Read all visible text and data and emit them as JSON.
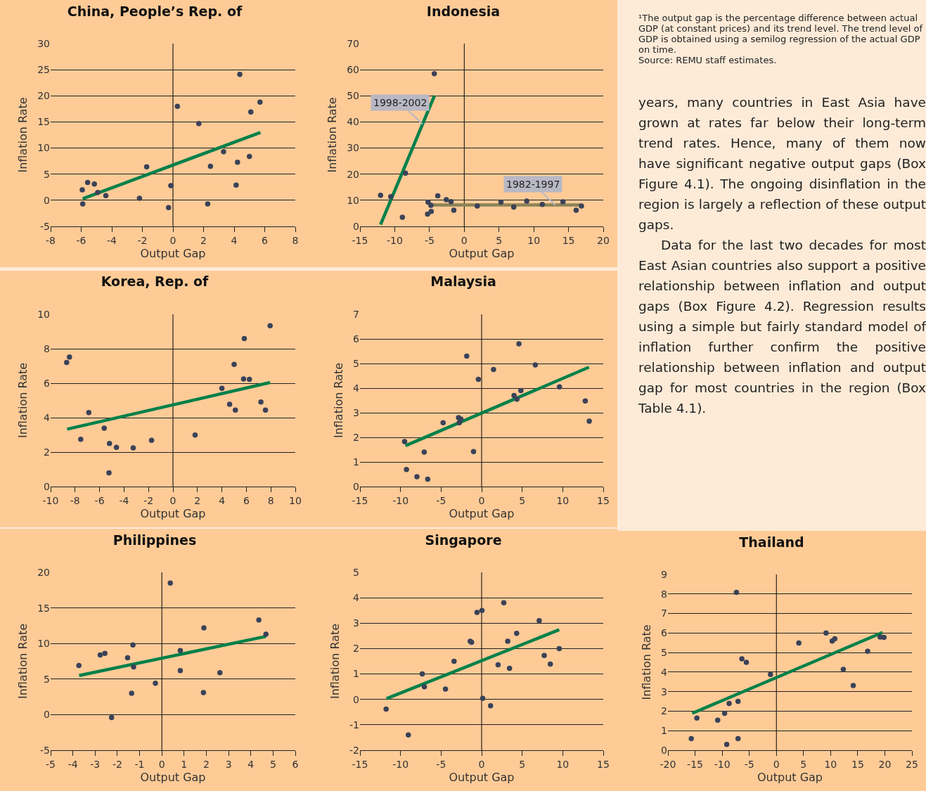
{
  "chart_data": [
    {
      "type": "scatter",
      "title": "China, People’s Rep. of",
      "xlabel": "Output Gap",
      "ylabel": "Inflation Rate",
      "xlim": [
        -8,
        8
      ],
      "xticks": [
        -8,
        -6,
        -4,
        -2,
        0,
        2,
        4,
        6,
        8
      ],
      "ylim": [
        -5,
        30
      ],
      "yticks": [
        -5,
        0,
        5,
        10,
        15,
        20,
        25,
        30
      ],
      "grid": "y",
      "marker": "circle",
      "ref_lines": [
        {
          "axis": "x",
          "value": 0,
          "color": "#000000"
        }
      ],
      "series": [
        {
          "type": "scatter",
          "color": "#3a4258",
          "x": [
            -5.93,
            -5.58,
            -5.14,
            -4.92,
            -4.39,
            -5.9,
            -2.19,
            -1.72,
            -0.29,
            -0.14,
            0.29,
            1.69,
            2.27,
            2.45,
            3.31,
            4.13,
            4.22,
            4.37,
            5.0,
            5.09,
            5.69
          ],
          "values": [
            2.0,
            3.4,
            3.1,
            1.5,
            0.9,
            -0.7,
            0.4,
            6.4,
            -1.4,
            2.8,
            18.0,
            14.7,
            -0.7,
            6.5,
            9.3,
            2.9,
            7.3,
            24.1,
            8.4,
            16.9,
            18.8
          ]
        },
        {
          "type": "line",
          "marker": "none",
          "color": "#00804a",
          "x": [
            -5.9,
            5.72
          ],
          "values": [
            0.3,
            13.0
          ]
        }
      ]
    },
    {
      "type": "scatter",
      "title": "Indonesia",
      "xlabel": "Output Gap",
      "ylabel": "Inflation Rate",
      "xlim": [
        -15,
        20
      ],
      "xticks": [
        -15,
        -10,
        -5,
        0,
        5,
        10,
        15,
        20
      ],
      "ylim": [
        0,
        70
      ],
      "yticks": [
        0,
        10,
        20,
        30,
        40,
        50,
        60,
        70
      ],
      "grid": "y",
      "marker": "circle",
      "ref_lines": [
        {
          "axis": "x",
          "value": 0,
          "color": "#000000"
        }
      ],
      "annotations": [
        {
          "text": "1998-2002",
          "x": -6,
          "y": 39.2
        },
        {
          "text": "1982-1997",
          "x": 13.1,
          "y": 8.2
        }
      ],
      "series": [
        {
          "type": "scatter",
          "color": "#3a4258",
          "x": [
            -12.04,
            -10.57,
            -8.9,
            -8.46,
            -4.31,
            -5.2,
            -5.28,
            -4.8,
            -4.75,
            -3.81,
            -2.58,
            -1.9,
            -1.5,
            1.87,
            5.28,
            7.12,
            8.99,
            11.23,
            14.2,
            16.1,
            16.86
          ],
          "values": [
            11.9,
            11.4,
            3.5,
            20.4,
            58.5,
            9.3,
            4.7,
            8.1,
            5.7,
            11.7,
            10.2,
            9.5,
            6.2,
            7.8,
            9.3,
            7.4,
            9.7,
            8.4,
            9.4,
            6.2,
            7.8
          ]
        },
        {
          "type": "line",
          "marker": "none",
          "color": "#00804a",
          "x": [
            -12.04,
            -4.28
          ],
          "values": [
            0.7,
            50.1
          ]
        },
        {
          "type": "line",
          "marker": "none",
          "color": "#8b8355",
          "x": [
            -4.85,
            16.8
          ],
          "values": [
            8.2,
            8.2
          ]
        }
      ]
    },
    {
      "type": "other",
      "annotations": [
        "¹The output gap is the percentage difference between actual GDP (at constant prices) and its trend level. The trend level of GDP is obtained using a semilog regression of the actual GDP on time.",
        "Source: REMU staff estimates.",
        "years, many countries in East Asia have grown at rates far below their long-term trend rates. Hence, many of them now have significant negative output gaps (Box Figure 4.1). The ongoing disinflation in the region is largely a reflection of these output gaps.",
        "Data for the last two decades for most East Asian countries also support a positive relationship between inflation and output gaps (Box Figure 4.2). Regression results using a simple but fairly standard model of inflation further confirm the positive relationship between inflation and output gap for most countries in the region (Box Table 4.1)."
      ]
    },
    {
      "type": "scatter",
      "title": "Korea, Rep. of",
      "xlabel": "Output Gap",
      "ylabel": "Inflation Rate",
      "xlim": [
        -10,
        10
      ],
      "xticks": [
        -10,
        -8,
        -6,
        -4,
        -2,
        0,
        2,
        4,
        6,
        8,
        10
      ],
      "ylim": [
        0,
        10
      ],
      "yticks": [
        0,
        2,
        4,
        6,
        8,
        10
      ],
      "grid": "y",
      "marker": "circle",
      "ref_lines": [
        {
          "axis": "x",
          "value": 0,
          "color": "#000000"
        }
      ],
      "series": [
        {
          "type": "scatter",
          "color": "#3a4258",
          "x": [
            -8.69,
            -8.46,
            -6.88,
            -7.54,
            -5.62,
            -5.19,
            -4.62,
            -5.23,
            -3.25,
            -1.75,
            1.81,
            4.0,
            4.63,
            5.1,
            5.0,
            5.83,
            5.77,
            6.25,
            7.19,
            7.56,
            7.94
          ],
          "values": [
            7.2,
            7.52,
            4.3,
            2.75,
            3.39,
            2.5,
            2.28,
            0.8,
            2.24,
            2.68,
            2.99,
            5.7,
            4.78,
            4.44,
            7.09,
            8.59,
            6.25,
            6.22,
            4.91,
            4.44,
            9.34
          ]
        },
        {
          "type": "line",
          "marker": "none",
          "color": "#00804a",
          "x": [
            -8.65,
            7.94
          ],
          "values": [
            3.33,
            6.04
          ]
        }
      ]
    },
    {
      "type": "scatter",
      "title": "Malaysia",
      "xlabel": "Output Gap",
      "ylabel": "Inflation Rate",
      "xlim": [
        -15,
        15
      ],
      "xticks": [
        -15,
        -10,
        -5,
        0,
        5,
        10,
        15
      ],
      "ylim": [
        0,
        7
      ],
      "yticks": [
        0,
        1,
        2,
        3,
        4,
        5,
        6,
        7
      ],
      "grid": "y",
      "marker": "circle",
      "ref_lines": [
        {
          "axis": "x",
          "value": 0,
          "color": "#000000"
        }
      ],
      "series": [
        {
          "type": "scatter",
          "color": "#3a4258",
          "x": [
            -9.5,
            -9.27,
            -7.98,
            -7.08,
            -6.65,
            -4.75,
            -2.85,
            -2.76,
            -2.56,
            -1.84,
            -1.0,
            -0.4,
            1.47,
            4.0,
            4.35,
            4.6,
            4.84,
            6.62,
            9.6,
            12.78,
            13.27
          ],
          "values": [
            1.83,
            0.69,
            0.4,
            1.4,
            0.3,
            2.59,
            2.8,
            2.59,
            2.74,
            5.3,
            1.42,
            4.36,
            4.76,
            3.7,
            3.55,
            5.8,
            3.9,
            4.94,
            4.05,
            3.48,
            2.66
          ]
        },
        {
          "type": "line",
          "marker": "none",
          "color": "#00804a",
          "x": [
            -9.39,
            13.24
          ],
          "values": [
            1.66,
            4.85
          ]
        }
      ]
    },
    {
      "type": "scatter",
      "title": "Philippines",
      "xlabel": "Output Gap",
      "ylabel": "Inflation Rate",
      "xlim": [
        -5,
        6
      ],
      "xticks": [
        -5,
        -4,
        -3,
        -2,
        -1,
        0,
        1,
        2,
        3,
        4,
        5,
        6
      ],
      "ylim": [
        -5,
        20
      ],
      "yticks": [
        -5,
        0,
        5,
        10,
        15,
        20
      ],
      "grid": "y",
      "marker": "circle",
      "ref_lines": [
        {
          "axis": "x",
          "value": 0,
          "color": "#000000"
        }
      ],
      "series": [
        {
          "type": "scatter",
          "color": "#3a4258",
          "x": [
            -3.73,
            -2.77,
            -2.56,
            -2.26,
            -1.54,
            -1.3,
            -1.27,
            -1.36,
            -0.29,
            0.38,
            0.83,
            0.83,
            1.89,
            1.87,
            2.61,
            4.36,
            4.68
          ],
          "values": [
            6.9,
            8.4,
            8.6,
            -0.4,
            8.0,
            9.8,
            6.7,
            3.0,
            4.4,
            18.5,
            9.0,
            6.2,
            12.2,
            3.1,
            5.9,
            13.3,
            11.3
          ]
        },
        {
          "type": "line",
          "marker": "none",
          "color": "#00804a",
          "x": [
            -3.72,
            4.68
          ],
          "values": [
            5.5,
            11.0
          ]
        }
      ]
    },
    {
      "type": "scatter",
      "title": "Singapore",
      "xlabel": "Output Gap",
      "ylabel": "Inflation Rate",
      "xlim": [
        -15,
        15
      ],
      "xticks": [
        -15,
        -10,
        -5,
        0,
        5,
        10,
        15
      ],
      "ylim": [
        -2,
        5
      ],
      "yticks": [
        -2,
        -1,
        0,
        1,
        2,
        3,
        4,
        5
      ],
      "grid": "y",
      "marker": "circle",
      "ref_lines": [
        {
          "axis": "x",
          "value": 0,
          "color": "#000000"
        }
      ],
      "series": [
        {
          "type": "scatter",
          "color": "#3a4258",
          "x": [
            -11.78,
            -9.04,
            -7.32,
            -7.06,
            -4.46,
            -3.4,
            -1.41,
            -1.24,
            -0.57,
            0.04,
            0.13,
            1.1,
            2.03,
            2.73,
            3.22,
            3.44,
            4.32,
            7.1,
            7.72,
            8.47,
            9.57
          ],
          "values": [
            -0.38,
            -1.4,
            1.0,
            0.5,
            0.41,
            1.5,
            2.29,
            2.25,
            3.42,
            3.5,
            0.04,
            -0.25,
            1.36,
            3.8,
            2.29,
            1.22,
            2.6,
            3.1,
            1.73,
            1.39,
            2.0
          ]
        },
        {
          "type": "line",
          "marker": "none",
          "color": "#00804a",
          "x": [
            -11.73,
            9.57
          ],
          "values": [
            0.03,
            2.74
          ]
        }
      ]
    },
    {
      "type": "scatter",
      "title": "Thailand",
      "xlabel": "Output Gap",
      "ylabel": "Inflation Rate",
      "xlim": [
        -20,
        25
      ],
      "xticks": [
        -20,
        -15,
        -10,
        -5,
        0,
        5,
        10,
        15,
        20,
        25
      ],
      "ylim": [
        0,
        9
      ],
      "yticks": [
        0,
        1,
        2,
        3,
        4,
        5,
        6,
        7,
        8,
        9
      ],
      "grid": "y",
      "marker": "circle",
      "ref_lines": [
        {
          "axis": "x",
          "value": 0,
          "color": "#000000"
        }
      ],
      "series": [
        {
          "type": "scatter",
          "color": "#3a4258",
          "x": [
            -15.7,
            -14.67,
            -10.83,
            -9.55,
            -9.16,
            -8.72,
            -7.37,
            -7.07,
            -7.07,
            -6.37,
            -5.54,
            -1.09,
            4.14,
            9.16,
            10.29,
            10.77,
            12.34,
            14.17,
            16.83,
            19.14,
            19.84
          ],
          "values": [
            0.59,
            1.65,
            1.54,
            1.89,
            0.3,
            2.39,
            8.08,
            2.5,
            0.59,
            4.68,
            4.5,
            3.88,
            5.49,
            6.0,
            5.59,
            5.71,
            4.14,
            3.31,
            5.07,
            5.8,
            5.78
          ]
        },
        {
          "type": "line",
          "marker": "none",
          "color": "#00804a",
          "x": [
            -15.53,
            19.58
          ],
          "values": [
            1.89,
            6.03
          ]
        }
      ]
    }
  ]
}
